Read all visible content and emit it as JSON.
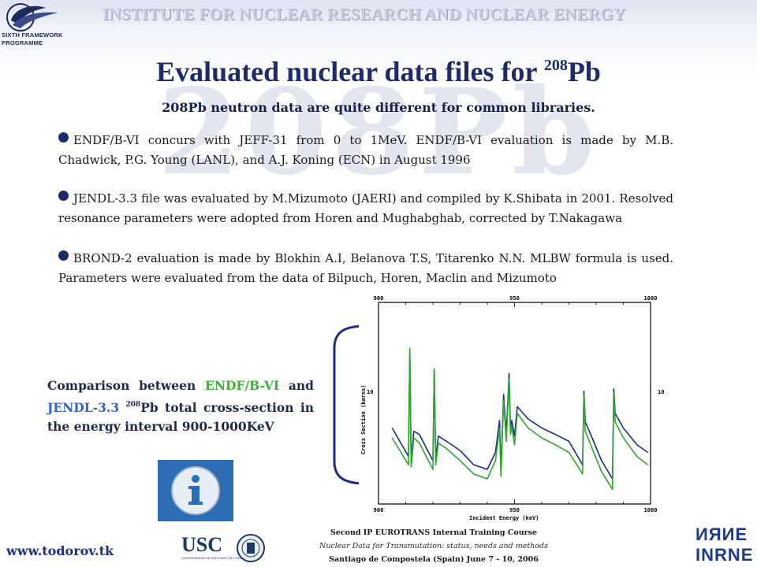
{
  "header": {
    "fp_label": "SIXTH FRAMEWORK PROGRAMME",
    "fp_label_line1": "SIXTH FRAMEWORK",
    "fp_label_line2": "PROGRAMME",
    "institute": "INSTITUTE FOR NUCLEAR RESEARCH AND NUCLEAR ENERGY"
  },
  "watermark": "208Pb",
  "title": {
    "prefix": "Evaluated nuclear data files for ",
    "mass": "208",
    "element": "Pb"
  },
  "subtitle": "208Pb neutron data are quite different for common libraries.",
  "bullets": [
    "ENDF/B-VI concurs with JEFF-31 from 0 to 1MeV. ENDF/B-VI evaluation is made by M.B. Chadwick, P.G. Young (LANL), and A.J. Koning (ECN) in August 1996",
    "JENDL-3.3 file was evaluated by M.Mizumoto (JAERI) and compiled by K.Shibata in 2001. Resolved resonance parameters were adopted from Horen and Mughabghab, corrected by T.Nakagawa",
    "BROND-2 evaluation is made by Blokhin A.I, Belanova T.S, Titarenko N.N. MLBW formula is used. Parameters were evaluated from the data of Bilpuch, Horen, Maclin and Mizumoto"
  ],
  "caption": {
    "before": "Comparison between ",
    "endf": "ENDF/B-VI",
    "and": " and ",
    "jendl": "JENDL-3.3",
    "mass": "208",
    "after": "Pb total cross-section in the energy interval 900-1000KeV"
  },
  "info_icon": "info-icon",
  "footer": {
    "website": "www.todorov.tk",
    "line1": "Second IP EUROTRANS Internal Training Course",
    "line2": "Nuclear Data for Transmutation: status, needs and methods",
    "line3": "Santiago de Compostela (Spain) June 7 - 10, 2006",
    "usc_logo": "USC",
    "usc_sub": "UNIVERSIDADE DE SANTIAGO DE COMPOSTELA",
    "inrne_logo": "INRNE"
  },
  "colors": {
    "title": "#1f2a6b",
    "endf": "#3bb135",
    "jendl": "#2f63c8",
    "series_endf": "#1e2a8a",
    "series_jendl": "#2ea82a"
  },
  "chart_data": {
    "type": "line",
    "xlabel": "Incident Energy (keV)",
    "ylabel": "Cross Section (barns)",
    "x_ticks_top": [
      "900",
      "950",
      "1000"
    ],
    "x_ticks_bottom": [
      "900",
      "950",
      "1000"
    ],
    "y_tick_left": "10",
    "y_tick_right": "10",
    "xlim": [
      900,
      1000
    ],
    "log_y": true,
    "series": [
      {
        "color": "#1e2a8a",
        "x": [
          905,
          911,
          911.5,
          912,
          913,
          915,
          920,
          920.5,
          921,
          922,
          925,
          930,
          935,
          940,
          943,
          944.5,
          945,
          946,
          947,
          948,
          948.5,
          949,
          950,
          951,
          955,
          960,
          965,
          970,
          975,
          975.5,
          976,
          978,
          982,
          986,
          986.5,
          987,
          990,
          995,
          999
        ],
        "y": [
          7.0,
          5.4,
          14.0,
          5.2,
          6.8,
          6.6,
          5.2,
          12.0,
          5.3,
          6.5,
          6.2,
          5.7,
          5.0,
          4.8,
          5.6,
          7.5,
          4.8,
          9.5,
          6.6,
          11.5,
          7.0,
          7.5,
          6.5,
          8.5,
          7.6,
          7.0,
          6.6,
          6.2,
          5.0,
          9.8,
          7.4,
          6.6,
          5.2,
          4.4,
          10.0,
          8.0,
          7.0,
          6.0,
          5.6
        ]
      },
      {
        "color": "#2ea82a",
        "x": [
          905,
          911,
          911.5,
          912,
          913,
          915,
          920,
          920.5,
          921,
          922,
          925,
          930,
          935,
          940,
          943,
          944.5,
          945,
          946,
          947,
          948,
          948.5,
          949,
          950,
          951,
          955,
          960,
          965,
          970,
          975,
          975.5,
          976,
          978,
          982,
          986,
          986.5,
          987,
          990,
          995,
          999
        ],
        "y": [
          6.4,
          5.0,
          14.5,
          4.9,
          6.4,
          6.1,
          4.8,
          12.0,
          5.0,
          6.1,
          5.8,
          5.2,
          4.6,
          4.4,
          5.2,
          7.0,
          4.5,
          9.0,
          6.2,
          11.0,
          6.6,
          7.1,
          6.0,
          8.0,
          7.0,
          6.4,
          6.0,
          5.6,
          4.6,
          9.5,
          6.8,
          6.0,
          4.7,
          4.0,
          9.6,
          7.4,
          6.4,
          5.4,
          5.0
        ]
      }
    ]
  }
}
